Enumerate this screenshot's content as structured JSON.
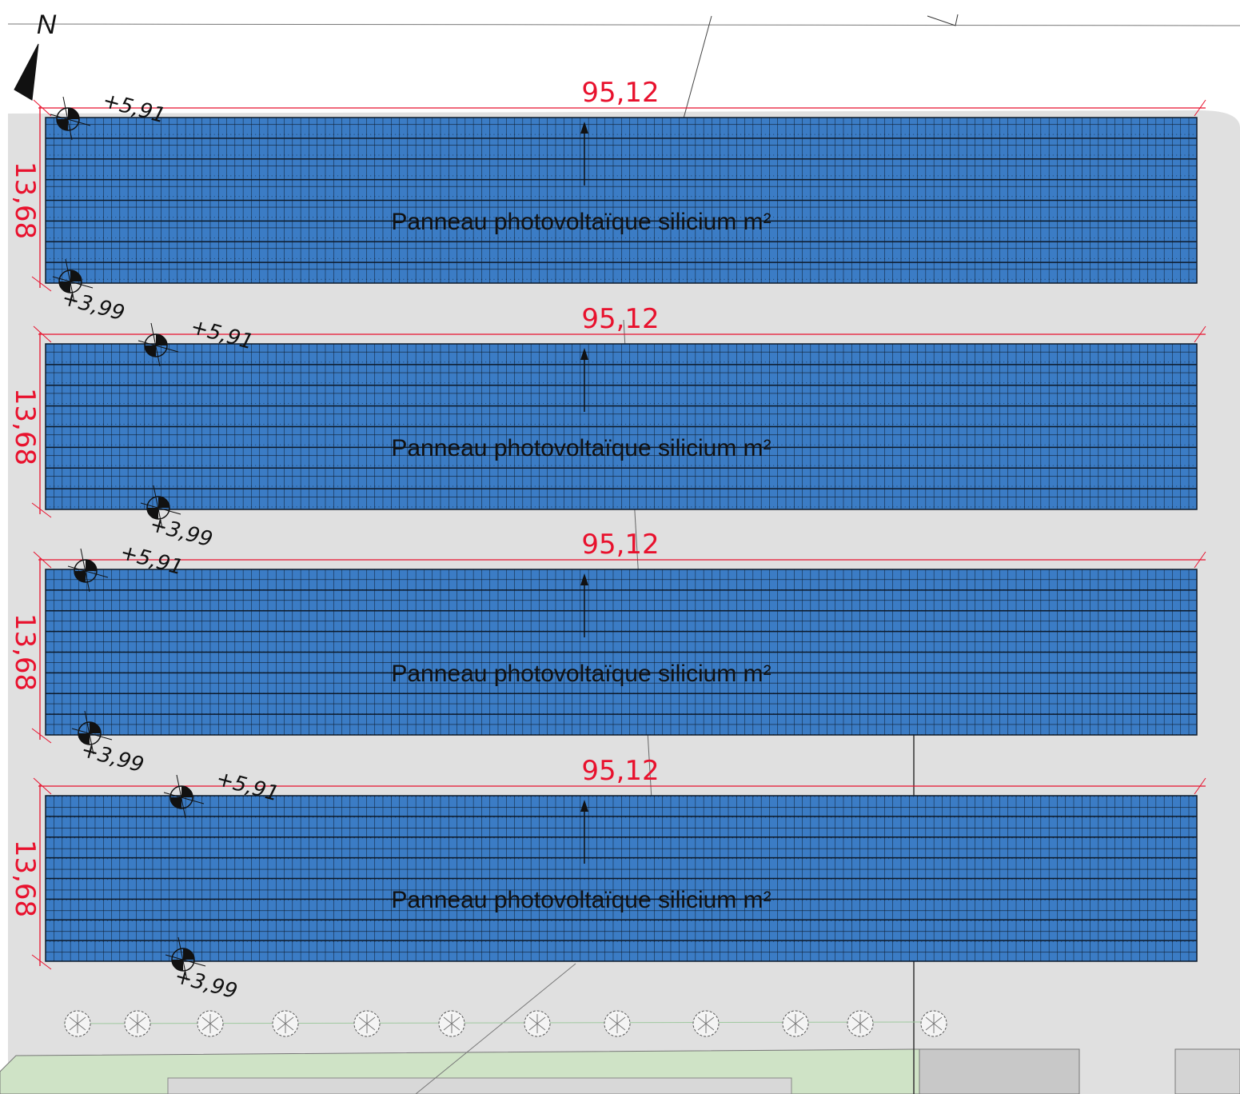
{
  "north_label": "N",
  "arrays": [
    {
      "length": "95,12",
      "width": "13,68",
      "top_level": "+5,91",
      "bottom_level": "+3,99",
      "label": "Panneau photovoltaïque silicium m²"
    },
    {
      "length": "95,12",
      "width": "13,68",
      "top_level": "+5,91",
      "bottom_level": "+3,99",
      "label": "Panneau photovoltaïque silicium m²"
    },
    {
      "length": "95,12",
      "width": "13,68",
      "top_level": "+5,91",
      "bottom_level": "+3,99",
      "label": "Panneau photovoltaïque silicium m²"
    },
    {
      "length": "95,12",
      "width": "13,68",
      "top_level": "+5,91",
      "bottom_level": "+3,99",
      "label": "Panneau photovoltaïque silicium m²"
    }
  ]
}
